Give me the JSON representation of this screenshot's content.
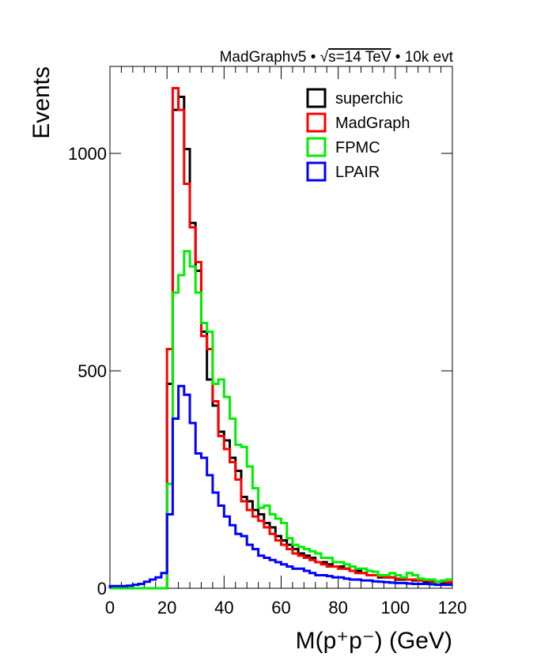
{
  "header": {
    "generator": "MadGraphv5",
    "energy": "s=14 TeV",
    "events": "10k evt",
    "sqrt_symbol": "√",
    "bullet": "•"
  },
  "chart_data": {
    "type": "histogram-step",
    "xlabel": "M(p⁺p⁻) (GeV)",
    "ylabel": "Events",
    "xlim": [
      0,
      120
    ],
    "ylim": [
      0,
      1200
    ],
    "xticks": [
      0,
      20,
      40,
      60,
      80,
      100,
      120
    ],
    "yticks": [
      0,
      500,
      1000
    ],
    "bin_width": 2,
    "legend_position": "top-right",
    "series": [
      {
        "name": "superchic",
        "color": "#000000",
        "values": [
          0,
          0,
          0,
          0,
          0,
          0,
          0,
          0,
          0,
          0,
          470,
          1100,
          1130,
          1010,
          840,
          730,
          590,
          480,
          420,
          360,
          340,
          300,
          270,
          210,
          200,
          180,
          170,
          150,
          140,
          120,
          110,
          100,
          90,
          80,
          75,
          70,
          60,
          60,
          55,
          50,
          50,
          45,
          40,
          40,
          35,
          30,
          30,
          25,
          25,
          25,
          20,
          20,
          20,
          18,
          18,
          15,
          15,
          15,
          12,
          12
        ]
      },
      {
        "name": "MadGraph",
        "color": "#ff0000",
        "values": [
          0,
          0,
          0,
          0,
          0,
          0,
          0,
          0,
          0,
          0,
          550,
          1150,
          1100,
          930,
          830,
          750,
          580,
          550,
          430,
          350,
          320,
          290,
          250,
          200,
          180,
          165,
          155,
          140,
          125,
          110,
          100,
          90,
          80,
          75,
          70,
          65,
          60,
          55,
          50,
          50,
          45,
          45,
          40,
          35,
          35,
          30,
          30,
          28,
          25,
          25,
          22,
          22,
          20,
          20,
          18,
          18,
          16,
          15,
          15,
          14
        ]
      },
      {
        "name": "FPMC",
        "color": "#00ee00",
        "values": [
          0,
          0,
          0,
          0,
          0,
          0,
          0,
          0,
          0,
          0,
          240,
          680,
          720,
          775,
          740,
          680,
          610,
          590,
          470,
          480,
          440,
          390,
          330,
          325,
          280,
          230,
          185,
          190,
          170,
          160,
          150,
          115,
          100,
          95,
          90,
          85,
          80,
          70,
          70,
          60,
          60,
          55,
          50,
          45,
          45,
          40,
          38,
          30,
          30,
          35,
          30,
          25,
          35,
          30,
          22,
          20,
          20,
          15,
          18,
          20
        ]
      },
      {
        "name": "LPAIR",
        "color": "#0000ff",
        "values": [
          5,
          5,
          5,
          6,
          8,
          10,
          15,
          20,
          25,
          35,
          170,
          390,
          465,
          445,
          380,
          310,
          300,
          260,
          220,
          190,
          165,
          145,
          125,
          120,
          100,
          90,
          75,
          70,
          65,
          60,
          55,
          50,
          45,
          45,
          40,
          35,
          30,
          30,
          28,
          25,
          25,
          22,
          20,
          20,
          18,
          18,
          16,
          15,
          14,
          13,
          12,
          12,
          11,
          10,
          10,
          10,
          9,
          8,
          8,
          8
        ]
      }
    ]
  }
}
